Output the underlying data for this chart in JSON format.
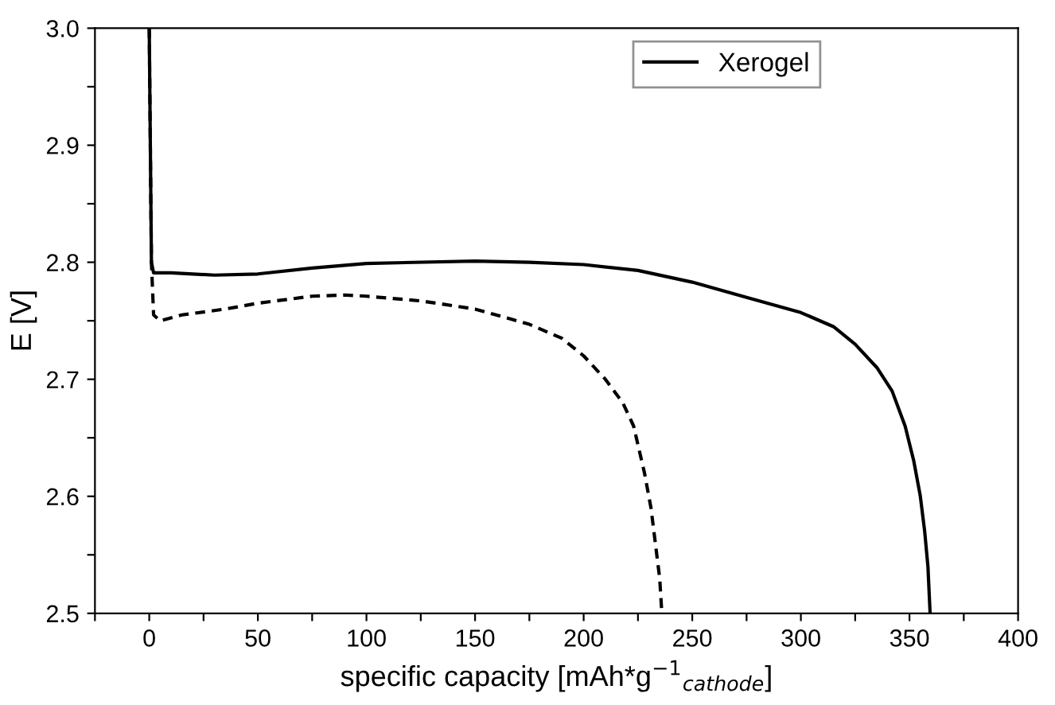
{
  "chart_data": {
    "type": "line",
    "xlabel": "specific capacity [mAh*g$^{−1}$$_{cathode}$]",
    "ylabel": "E [V]",
    "xlim": [
      -25,
      400
    ],
    "ylim": [
      2.5,
      3.0
    ],
    "xticks": [
      {
        "value": -25,
        "label": null
      },
      0,
      {
        "value": 25,
        "label": null
      },
      50,
      {
        "value": 75,
        "label": null
      },
      100,
      {
        "value": 125,
        "label": null
      },
      150,
      {
        "value": 175,
        "label": null
      },
      200,
      {
        "value": 225,
        "label": null
      },
      250,
      {
        "value": 275,
        "label": null
      },
      300,
      {
        "value": 325,
        "label": null
      },
      350,
      {
        "value": 375,
        "label": null
      },
      400
    ],
    "yticks": [
      2.5,
      {
        "value": 2.55,
        "label": null
      },
      2.6,
      {
        "value": 2.65,
        "label": null
      },
      2.7,
      {
        "value": 2.75,
        "label": null
      },
      2.8,
      {
        "value": 2.85,
        "label": null
      },
      2.9,
      {
        "value": 2.95,
        "label": null
      },
      {
        "value": 3.0,
        "label": "3.0"
      }
    ],
    "grid": false,
    "legend": "top right",
    "marker": "none",
    "series": [
      {
        "name": "Xerogel",
        "color": "#000000",
        "line_style": "solid",
        "x": [
          0,
          0.5,
          1,
          2,
          10,
          30,
          50,
          75,
          100,
          150,
          175,
          200,
          225,
          250,
          275,
          300,
          315,
          325,
          335,
          342,
          348,
          352,
          355,
          357,
          358.5,
          359.5
        ],
        "values": [
          3.0,
          2.9,
          2.8,
          2.791,
          2.791,
          2.789,
          2.79,
          2.795,
          2.799,
          2.801,
          2.8,
          2.798,
          2.793,
          2.783,
          2.77,
          2.757,
          2.745,
          2.73,
          2.71,
          2.69,
          2.66,
          2.63,
          2.6,
          2.57,
          2.54,
          2.5
        ]
      },
      {
        "color": "#000000",
        "line_style": "dashed",
        "x": [
          0,
          0.5,
          1,
          2,
          5,
          15,
          35,
          50,
          75,
          90,
          100,
          125,
          150,
          175,
          190,
          200,
          210,
          218,
          223,
          228,
          231,
          233,
          235,
          236
        ],
        "values": [
          3.0,
          2.9,
          2.8,
          2.755,
          2.75,
          2.755,
          2.76,
          2.765,
          2.771,
          2.772,
          2.771,
          2.767,
          2.76,
          2.747,
          2.735,
          2.72,
          2.7,
          2.68,
          2.66,
          2.62,
          2.59,
          2.56,
          2.53,
          2.5
        ]
      }
    ]
  }
}
